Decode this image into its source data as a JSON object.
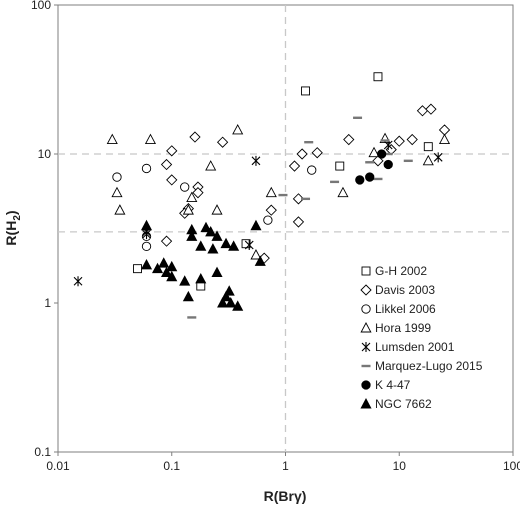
{
  "chart_data": {
    "type": "scatter",
    "xlabel": "R(Brγ)",
    "ylabel": "R(H2)",
    "ylabel_parts": {
      "main": "R(H",
      "sub": "2",
      "close": ")"
    },
    "x_scale": "log",
    "y_scale": "log",
    "xlim": [
      0.01,
      100
    ],
    "ylim": [
      0.1,
      100
    ],
    "x_ticks": [
      0.01,
      0.1,
      1,
      10,
      100
    ],
    "x_tick_labels": [
      "0.01",
      "0.1",
      "1",
      "10",
      "100"
    ],
    "y_ticks": [
      0.1,
      1,
      10,
      100
    ],
    "y_tick_labels": [
      "0.1",
      "1",
      "10",
      "100"
    ],
    "reference_lines": {
      "x": [
        1
      ],
      "y": [
        10,
        3
      ]
    },
    "grid": false,
    "legend_position": "inside-right",
    "series": [
      {
        "name": "G-H 2002",
        "marker": "square",
        "filled": false,
        "points": [
          [
            1.5,
            26.5
          ],
          [
            6.5,
            33
          ],
          [
            3,
            8.3
          ],
          [
            18,
            11.2
          ],
          [
            0.18,
            1.3
          ],
          [
            0.05,
            1.7
          ],
          [
            0.45,
            2.5
          ]
        ]
      },
      {
        "name": "Davis 2003",
        "marker": "diamond",
        "filled": false,
        "points": [
          [
            0.1,
            10.5
          ],
          [
            0.16,
            13
          ],
          [
            0.28,
            12
          ],
          [
            0.09,
            8.5
          ],
          [
            0.1,
            6.7
          ],
          [
            0.17,
            6
          ],
          [
            0.17,
            5.5
          ],
          [
            0.14,
            4.3
          ],
          [
            0.13,
            4
          ],
          [
            0.09,
            2.6
          ],
          [
            0.65,
            2
          ],
          [
            0.75,
            4.2
          ],
          [
            1.3,
            5
          ],
          [
            1.2,
            8.3
          ],
          [
            1.4,
            10
          ],
          [
            1.9,
            10.2
          ],
          [
            3.6,
            12.5
          ],
          [
            6.5,
            9
          ],
          [
            8.5,
            10.7
          ],
          [
            10,
            12.2
          ],
          [
            13,
            12.5
          ],
          [
            16,
            19.5
          ],
          [
            19,
            20
          ],
          [
            25,
            14.5
          ],
          [
            1.3,
            3.5
          ]
        ]
      },
      {
        "name": "Likkel 2006",
        "marker": "circle",
        "filled": false,
        "points": [
          [
            0.033,
            7
          ],
          [
            0.06,
            8
          ],
          [
            0.06,
            2.8
          ],
          [
            0.06,
            2.4
          ],
          [
            0.13,
            6
          ],
          [
            0.7,
            3.6
          ],
          [
            1.7,
            7.8
          ]
        ]
      },
      {
        "name": "Hora 1999",
        "marker": "triangle",
        "filled": false,
        "points": [
          [
            0.03,
            12.5
          ],
          [
            0.065,
            12.5
          ],
          [
            0.033,
            5.5
          ],
          [
            0.035,
            4.2
          ],
          [
            0.14,
            4.2
          ],
          [
            0.15,
            5.1
          ],
          [
            0.22,
            8.3
          ],
          [
            0.25,
            4.2
          ],
          [
            0.38,
            14.5
          ],
          [
            0.55,
            2.1
          ],
          [
            0.75,
            5.5
          ],
          [
            3.2,
            5.5
          ],
          [
            6,
            10.2
          ],
          [
            7.5,
            12.7
          ],
          [
            18,
            9
          ],
          [
            25,
            12.5
          ]
        ]
      },
      {
        "name": "Lumsden 2001",
        "marker": "asterisk",
        "filled": false,
        "points": [
          [
            0.015,
            1.4
          ],
          [
            0.06,
            3
          ],
          [
            0.06,
            2.9
          ],
          [
            0.48,
            2.45
          ],
          [
            0.55,
            9
          ],
          [
            8,
            11.5
          ],
          [
            22,
            9.5
          ]
        ]
      },
      {
        "name": "Marquez-Lugo 2015",
        "marker": "dash",
        "filled": false,
        "points": [
          [
            0.15,
            0.8
          ],
          [
            1.5,
            5
          ],
          [
            1.6,
            12
          ],
          [
            2.7,
            6.5
          ],
          [
            4.3,
            17.5
          ],
          [
            5.5,
            8.8
          ],
          [
            6.5,
            6.8
          ],
          [
            7.5,
            12.3
          ],
          [
            8,
            10
          ],
          [
            12,
            9
          ],
          [
            0.95,
            5.3
          ]
        ]
      },
      {
        "name": "K 4-47",
        "marker": "circle",
        "filled": true,
        "points": [
          [
            4.5,
            6.7
          ],
          [
            5.5,
            7
          ],
          [
            7,
            10
          ],
          [
            8,
            8.5
          ]
        ]
      },
      {
        "name": "NGC 7662",
        "marker": "triangle",
        "filled": true,
        "points": [
          [
            0.06,
            3.3
          ],
          [
            0.06,
            1.8
          ],
          [
            0.075,
            1.7
          ],
          [
            0.085,
            1.85
          ],
          [
            0.09,
            1.6
          ],
          [
            0.1,
            1.75
          ],
          [
            0.1,
            1.5
          ],
          [
            0.13,
            1.4
          ],
          [
            0.14,
            1.1
          ],
          [
            0.15,
            2.8
          ],
          [
            0.15,
            3.1
          ],
          [
            0.18,
            1.45
          ],
          [
            0.18,
            2.4
          ],
          [
            0.2,
            3.2
          ],
          [
            0.22,
            3
          ],
          [
            0.23,
            2.3
          ],
          [
            0.25,
            2.8
          ],
          [
            0.25,
            1.6
          ],
          [
            0.3,
            2.5
          ],
          [
            0.3,
            1.1
          ],
          [
            0.32,
            1.2
          ],
          [
            0.33,
            1.0
          ],
          [
            0.35,
            2.4
          ],
          [
            0.28,
            1.0
          ],
          [
            0.55,
            3.3
          ],
          [
            0.6,
            1.9
          ],
          [
            0.38,
            0.95
          ]
        ]
      }
    ]
  }
}
